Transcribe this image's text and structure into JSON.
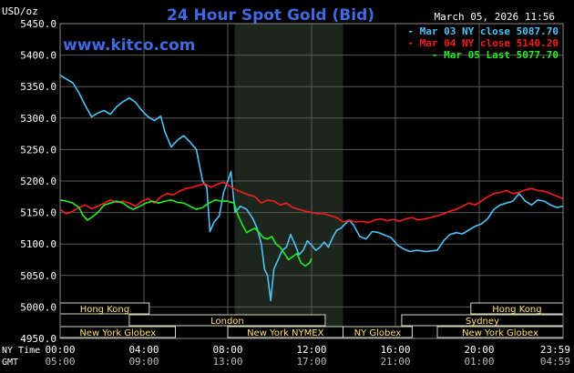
{
  "chart_data": {
    "type": "line",
    "title": "24 Hour Spot Gold (Bid)",
    "watermark": "www.kitco.com",
    "timestamp": "March 05, 2026 11:56",
    "ylabel": "USD/oz",
    "ylim": [
      4950,
      5450
    ],
    "yticks": [
      "5450.0",
      "5400.0",
      "5350.0",
      "5300.0",
      "5250.0",
      "5200.0",
      "5150.0",
      "5100.0",
      "5050.0",
      "5000.0",
      "4950.0"
    ],
    "ny_time_label": "NY Time",
    "gmt_label": "GMT",
    "xticks_ny": [
      "00:00",
      "04:00",
      "08:00",
      "12:00",
      "16:00",
      "20:00",
      "23:59"
    ],
    "xticks_gmt": [
      "05:00",
      "09:00",
      "13:00",
      "17:00",
      "21:00",
      "01:00",
      "04:59"
    ],
    "xlim_hours": [
      0,
      24
    ],
    "shaded_hours": [
      8.33,
      13.5
    ],
    "legend_position": "top-right",
    "colors": {
      "background": "#000000",
      "title": "#4169e1",
      "grid": "#666666",
      "watermark": "#4169e1"
    },
    "series": [
      {
        "name": "Mar 03 NY close 5087.70",
        "color": "#4fc3f7",
        "points": [
          [
            0,
            5368
          ],
          [
            0.3,
            5362
          ],
          [
            0.6,
            5356
          ],
          [
            0.9,
            5340
          ],
          [
            1.2,
            5320
          ],
          [
            1.5,
            5302
          ],
          [
            1.8,
            5308
          ],
          [
            2.1,
            5312
          ],
          [
            2.4,
            5306
          ],
          [
            2.7,
            5318
          ],
          [
            3.0,
            5326
          ],
          [
            3.3,
            5332
          ],
          [
            3.6,
            5325
          ],
          [
            3.9,
            5312
          ],
          [
            4.2,
            5302
          ],
          [
            4.5,
            5296
          ],
          [
            4.8,
            5303
          ],
          [
            5.0,
            5278
          ],
          [
            5.3,
            5254
          ],
          [
            5.6,
            5265
          ],
          [
            5.9,
            5272
          ],
          [
            6.2,
            5262
          ],
          [
            6.5,
            5250
          ],
          [
            6.8,
            5200
          ],
          [
            7.0,
            5190
          ],
          [
            7.15,
            5120
          ],
          [
            7.35,
            5135
          ],
          [
            7.6,
            5145
          ],
          [
            7.8,
            5182
          ],
          [
            8.0,
            5200
          ],
          [
            8.15,
            5215
          ],
          [
            8.35,
            5150
          ],
          [
            8.6,
            5160
          ],
          [
            8.9,
            5155
          ],
          [
            9.2,
            5140
          ],
          [
            9.4,
            5125
          ],
          [
            9.6,
            5100
          ],
          [
            9.75,
            5060
          ],
          [
            9.9,
            5050
          ],
          [
            10.05,
            5010
          ],
          [
            10.2,
            5060
          ],
          [
            10.4,
            5075
          ],
          [
            10.6,
            5090
          ],
          [
            10.8,
            5095
          ],
          [
            11.0,
            5115
          ],
          [
            11.2,
            5100
          ],
          [
            11.4,
            5083
          ],
          [
            11.6,
            5090
          ],
          [
            11.8,
            5105
          ],
          [
            12.0,
            5098
          ],
          [
            12.2,
            5090
          ],
          [
            12.4,
            5095
          ],
          [
            12.6,
            5103
          ],
          [
            12.8,
            5095
          ],
          [
            13.0,
            5110
          ],
          [
            13.2,
            5122
          ],
          [
            13.4,
            5125
          ],
          [
            13.6,
            5132
          ],
          [
            13.8,
            5138
          ],
          [
            14.0,
            5130
          ],
          [
            14.3,
            5112
          ],
          [
            14.6,
            5108
          ],
          [
            14.9,
            5120
          ],
          [
            15.2,
            5118
          ],
          [
            15.5,
            5114
          ],
          [
            15.8,
            5110
          ],
          [
            16.1,
            5098
          ],
          [
            16.4,
            5092
          ],
          [
            16.7,
            5088
          ],
          [
            17.0,
            5090
          ],
          [
            17.5,
            5088
          ],
          [
            18.0,
            5090
          ],
          [
            18.3,
            5105
          ],
          [
            18.6,
            5115
          ],
          [
            18.9,
            5118
          ],
          [
            19.2,
            5116
          ],
          [
            19.5,
            5122
          ],
          [
            19.8,
            5128
          ],
          [
            20.1,
            5132
          ],
          [
            20.4,
            5140
          ],
          [
            20.7,
            5155
          ],
          [
            21.0,
            5162
          ],
          [
            21.3,
            5165
          ],
          [
            21.6,
            5168
          ],
          [
            21.9,
            5180
          ],
          [
            22.2,
            5168
          ],
          [
            22.5,
            5162
          ],
          [
            22.8,
            5170
          ],
          [
            23.1,
            5168
          ],
          [
            23.4,
            5162
          ],
          [
            23.7,
            5158
          ],
          [
            24.0,
            5160
          ]
        ]
      },
      {
        "name": "Mar 04 NY close 5140.20",
        "color": "#ff1a1a",
        "points": [
          [
            0,
            5155
          ],
          [
            0.3,
            5148
          ],
          [
            0.6,
            5152
          ],
          [
            0.9,
            5158
          ],
          [
            1.2,
            5162
          ],
          [
            1.5,
            5156
          ],
          [
            1.8,
            5160
          ],
          [
            2.1,
            5165
          ],
          [
            2.4,
            5170
          ],
          [
            2.7,
            5166
          ],
          [
            3.0,
            5168
          ],
          [
            3.3,
            5165
          ],
          [
            3.6,
            5160
          ],
          [
            3.9,
            5168
          ],
          [
            4.2,
            5172
          ],
          [
            4.5,
            5165
          ],
          [
            4.8,
            5175
          ],
          [
            5.1,
            5180
          ],
          [
            5.4,
            5178
          ],
          [
            5.7,
            5184
          ],
          [
            6.0,
            5188
          ],
          [
            6.3,
            5190
          ],
          [
            6.6,
            5193
          ],
          [
            6.9,
            5196
          ],
          [
            7.2,
            5190
          ],
          [
            7.5,
            5195
          ],
          [
            7.8,
            5198
          ],
          [
            8.1,
            5192
          ],
          [
            8.4,
            5186
          ],
          [
            8.7,
            5182
          ],
          [
            9.0,
            5178
          ],
          [
            9.3,
            5175
          ],
          [
            9.6,
            5165
          ],
          [
            9.9,
            5170
          ],
          [
            10.2,
            5168
          ],
          [
            10.5,
            5162
          ],
          [
            10.8,
            5165
          ],
          [
            11.1,
            5158
          ],
          [
            11.4,
            5155
          ],
          [
            11.7,
            5152
          ],
          [
            12.0,
            5150
          ],
          [
            12.3,
            5148
          ],
          [
            12.6,
            5148
          ],
          [
            12.9,
            5145
          ],
          [
            13.2,
            5142
          ],
          [
            13.5,
            5135
          ],
          [
            13.8,
            5138
          ],
          [
            14.1,
            5135
          ],
          [
            14.4,
            5136
          ],
          [
            14.7,
            5134
          ],
          [
            15.0,
            5138
          ],
          [
            15.3,
            5140
          ],
          [
            15.6,
            5137
          ],
          [
            15.9,
            5139
          ],
          [
            16.2,
            5136
          ],
          [
            16.5,
            5140
          ],
          [
            16.8,
            5142
          ],
          [
            17.1,
            5138
          ],
          [
            17.4,
            5140
          ],
          [
            17.7,
            5142
          ],
          [
            18.0,
            5145
          ],
          [
            18.3,
            5148
          ],
          [
            18.6,
            5152
          ],
          [
            18.9,
            5155
          ],
          [
            19.2,
            5160
          ],
          [
            19.5,
            5165
          ],
          [
            19.8,
            5162
          ],
          [
            20.1,
            5168
          ],
          [
            20.4,
            5175
          ],
          [
            20.7,
            5180
          ],
          [
            21.0,
            5182
          ],
          [
            21.3,
            5185
          ],
          [
            21.6,
            5180
          ],
          [
            21.9,
            5182
          ],
          [
            22.2,
            5186
          ],
          [
            22.5,
            5188
          ],
          [
            22.8,
            5185
          ],
          [
            23.1,
            5184
          ],
          [
            23.4,
            5180
          ],
          [
            23.7,
            5176
          ],
          [
            24.0,
            5172
          ]
        ]
      },
      {
        "name": "Mar 05 Last 5077.70",
        "color": "#22ee22",
        "points": [
          [
            0,
            5170
          ],
          [
            0.3,
            5168
          ],
          [
            0.6,
            5165
          ],
          [
            0.9,
            5158
          ],
          [
            1.1,
            5145
          ],
          [
            1.3,
            5138
          ],
          [
            1.5,
            5142
          ],
          [
            1.8,
            5150
          ],
          [
            2.1,
            5162
          ],
          [
            2.4,
            5165
          ],
          [
            2.7,
            5168
          ],
          [
            3.0,
            5165
          ],
          [
            3.3,
            5158
          ],
          [
            3.5,
            5155
          ],
          [
            3.8,
            5160
          ],
          [
            4.1,
            5165
          ],
          [
            4.4,
            5168
          ],
          [
            4.7,
            5165
          ],
          [
            5.0,
            5168
          ],
          [
            5.3,
            5170
          ],
          [
            5.6,
            5166
          ],
          [
            5.9,
            5165
          ],
          [
            6.2,
            5160
          ],
          [
            6.5,
            5155
          ],
          [
            6.8,
            5158
          ],
          [
            7.1,
            5165
          ],
          [
            7.4,
            5170
          ],
          [
            7.7,
            5168
          ],
          [
            8.0,
            5168
          ],
          [
            8.3,
            5165
          ],
          [
            8.5,
            5145
          ],
          [
            8.7,
            5130
          ],
          [
            8.9,
            5118
          ],
          [
            9.1,
            5122
          ],
          [
            9.3,
            5125
          ],
          [
            9.5,
            5118
          ],
          [
            9.7,
            5110
          ],
          [
            9.9,
            5108
          ],
          [
            10.1,
            5112
          ],
          [
            10.3,
            5100
          ],
          [
            10.5,
            5095
          ],
          [
            10.7,
            5085
          ],
          [
            10.9,
            5075
          ],
          [
            11.1,
            5080
          ],
          [
            11.3,
            5085
          ],
          [
            11.5,
            5070
          ],
          [
            11.7,
            5065
          ],
          [
            11.9,
            5070
          ],
          [
            12.0,
            5077
          ]
        ]
      }
    ],
    "sessions": [
      {
        "label": "Hong Kong",
        "row": 1,
        "start": 0,
        "end": 4.25
      },
      {
        "label": "Hong Kong",
        "row": 1,
        "start": 19.6,
        "end": 24
      },
      {
        "label": "London",
        "row": 2,
        "start": 3.3,
        "end": 12.65
      },
      {
        "label": "Sydney",
        "row": 2,
        "start": 16.3,
        "end": 24
      },
      {
        "label": "New York Globex",
        "row": 3,
        "start": 0,
        "end": 5.5
      },
      {
        "label": "New York NYMEX",
        "row": 3,
        "start": 8.0,
        "end": 13.5
      },
      {
        "label": "NY Globex",
        "row": 3,
        "start": 13.5,
        "end": 16.8
      },
      {
        "label": "New York Globex",
        "row": 3,
        "start": 18.0,
        "end": 24
      }
    ]
  }
}
